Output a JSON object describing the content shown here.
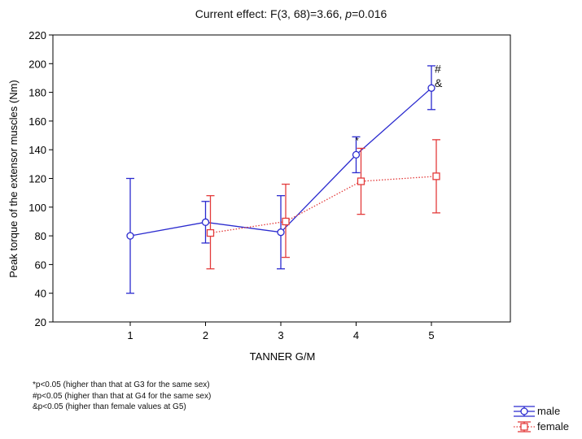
{
  "title_prefix": "Current effect: F(3, 68)=3.66, ",
  "title_p": "p",
  "title_suffix": "=0.016",
  "chart_data": {
    "type": "line",
    "title": "Current effect: F(3, 68)=3.66, p=0.016",
    "xlabel": "TANNER G/M",
    "ylabel": "Peak torque of the extensor muscles (Nm)",
    "categories": [
      "1",
      "2",
      "3",
      "4",
      "5"
    ],
    "ylim": [
      20,
      220
    ],
    "yticks": [
      20,
      40,
      60,
      80,
      100,
      120,
      140,
      160,
      180,
      200,
      220
    ],
    "grid": false,
    "legend_position": "bottom-right",
    "series": [
      {
        "name": "male",
        "color": "#2b2bcf",
        "line_style": "solid",
        "marker": "circle",
        "x": [
          1,
          2,
          3,
          4,
          5
        ],
        "values": [
          80,
          89.5,
          82.5,
          136.5,
          183
        ],
        "lower": [
          40,
          75,
          57,
          124,
          168
        ],
        "upper": [
          120,
          104,
          108,
          149,
          198.5
        ]
      },
      {
        "name": "female",
        "color": "#e33b3b",
        "line_style": "dotted",
        "marker": "square",
        "x": [
          2,
          3,
          4,
          5
        ],
        "values": [
          82,
          90,
          118,
          121.5
        ],
        "lower": [
          57,
          65,
          95,
          96
        ],
        "upper": [
          108,
          116,
          141,
          147
        ]
      }
    ],
    "annotations": [
      {
        "text": "*",
        "x": 4,
        "y": 149
      },
      {
        "text": "#",
        "x": 5,
        "y": 196
      },
      {
        "text": "&",
        "x": 5,
        "y": 186
      }
    ]
  },
  "footnotes": [
    "*p<0.05 (higher than that at G3 for the same sex)",
    "#p<0.05 (higher than that at G4 for the same sex)",
    "&p<0.05 (higher than female values at G5)"
  ],
  "legend": [
    {
      "label": "male",
      "color": "#2b2bcf",
      "marker": "circle"
    },
    {
      "label": "female",
      "color": "#e33b3b",
      "marker": "square"
    }
  ]
}
